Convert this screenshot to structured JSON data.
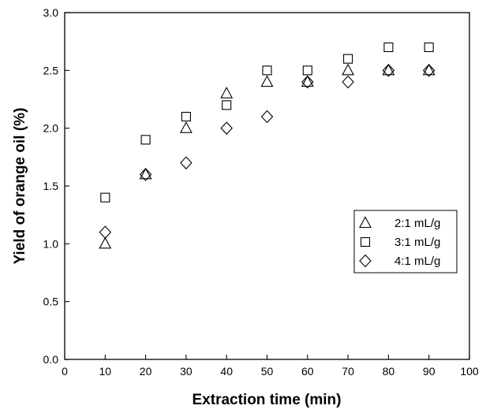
{
  "chart_data": {
    "type": "scatter",
    "title": "",
    "xlabel": "Extraction time (min)",
    "ylabel": "Yield of orange oil (%)",
    "xlim": [
      0,
      100
    ],
    "ylim": [
      0.0,
      3.0
    ],
    "xticks": [
      0,
      10,
      20,
      30,
      40,
      50,
      60,
      70,
      80,
      90,
      100
    ],
    "yticks": [
      0.0,
      0.5,
      1.0,
      1.5,
      2.0,
      2.5,
      3.0
    ],
    "xtick_labels": [
      "0",
      "10",
      "20",
      "30",
      "40",
      "50",
      "60",
      "70",
      "80",
      "90",
      "100"
    ],
    "ytick_labels": [
      "0.0",
      "0.5",
      "1.0",
      "1.5",
      "2.0",
      "2.5",
      "3.0"
    ],
    "grid": false,
    "legend_position": "right",
    "series": [
      {
        "name": "2:1 mL/g",
        "marker": "triangle",
        "x": [
          10,
          20,
          30,
          40,
          50,
          60,
          70,
          80,
          90
        ],
        "y": [
          1.0,
          1.6,
          2.0,
          2.3,
          2.4,
          2.4,
          2.5,
          2.5,
          2.5
        ]
      },
      {
        "name": "3:1 mL/g",
        "marker": "square",
        "x": [
          10,
          20,
          30,
          40,
          50,
          60,
          70,
          80,
          90
        ],
        "y": [
          1.4,
          1.9,
          2.1,
          2.2,
          2.5,
          2.5,
          2.6,
          2.7,
          2.7
        ]
      },
      {
        "name": "4:1 mL/g",
        "marker": "diamond",
        "x": [
          10,
          20,
          30,
          40,
          50,
          60,
          70,
          80,
          90
        ],
        "y": [
          1.1,
          1.6,
          1.7,
          2.0,
          2.1,
          2.4,
          2.4,
          2.5,
          2.5
        ]
      }
    ]
  }
}
